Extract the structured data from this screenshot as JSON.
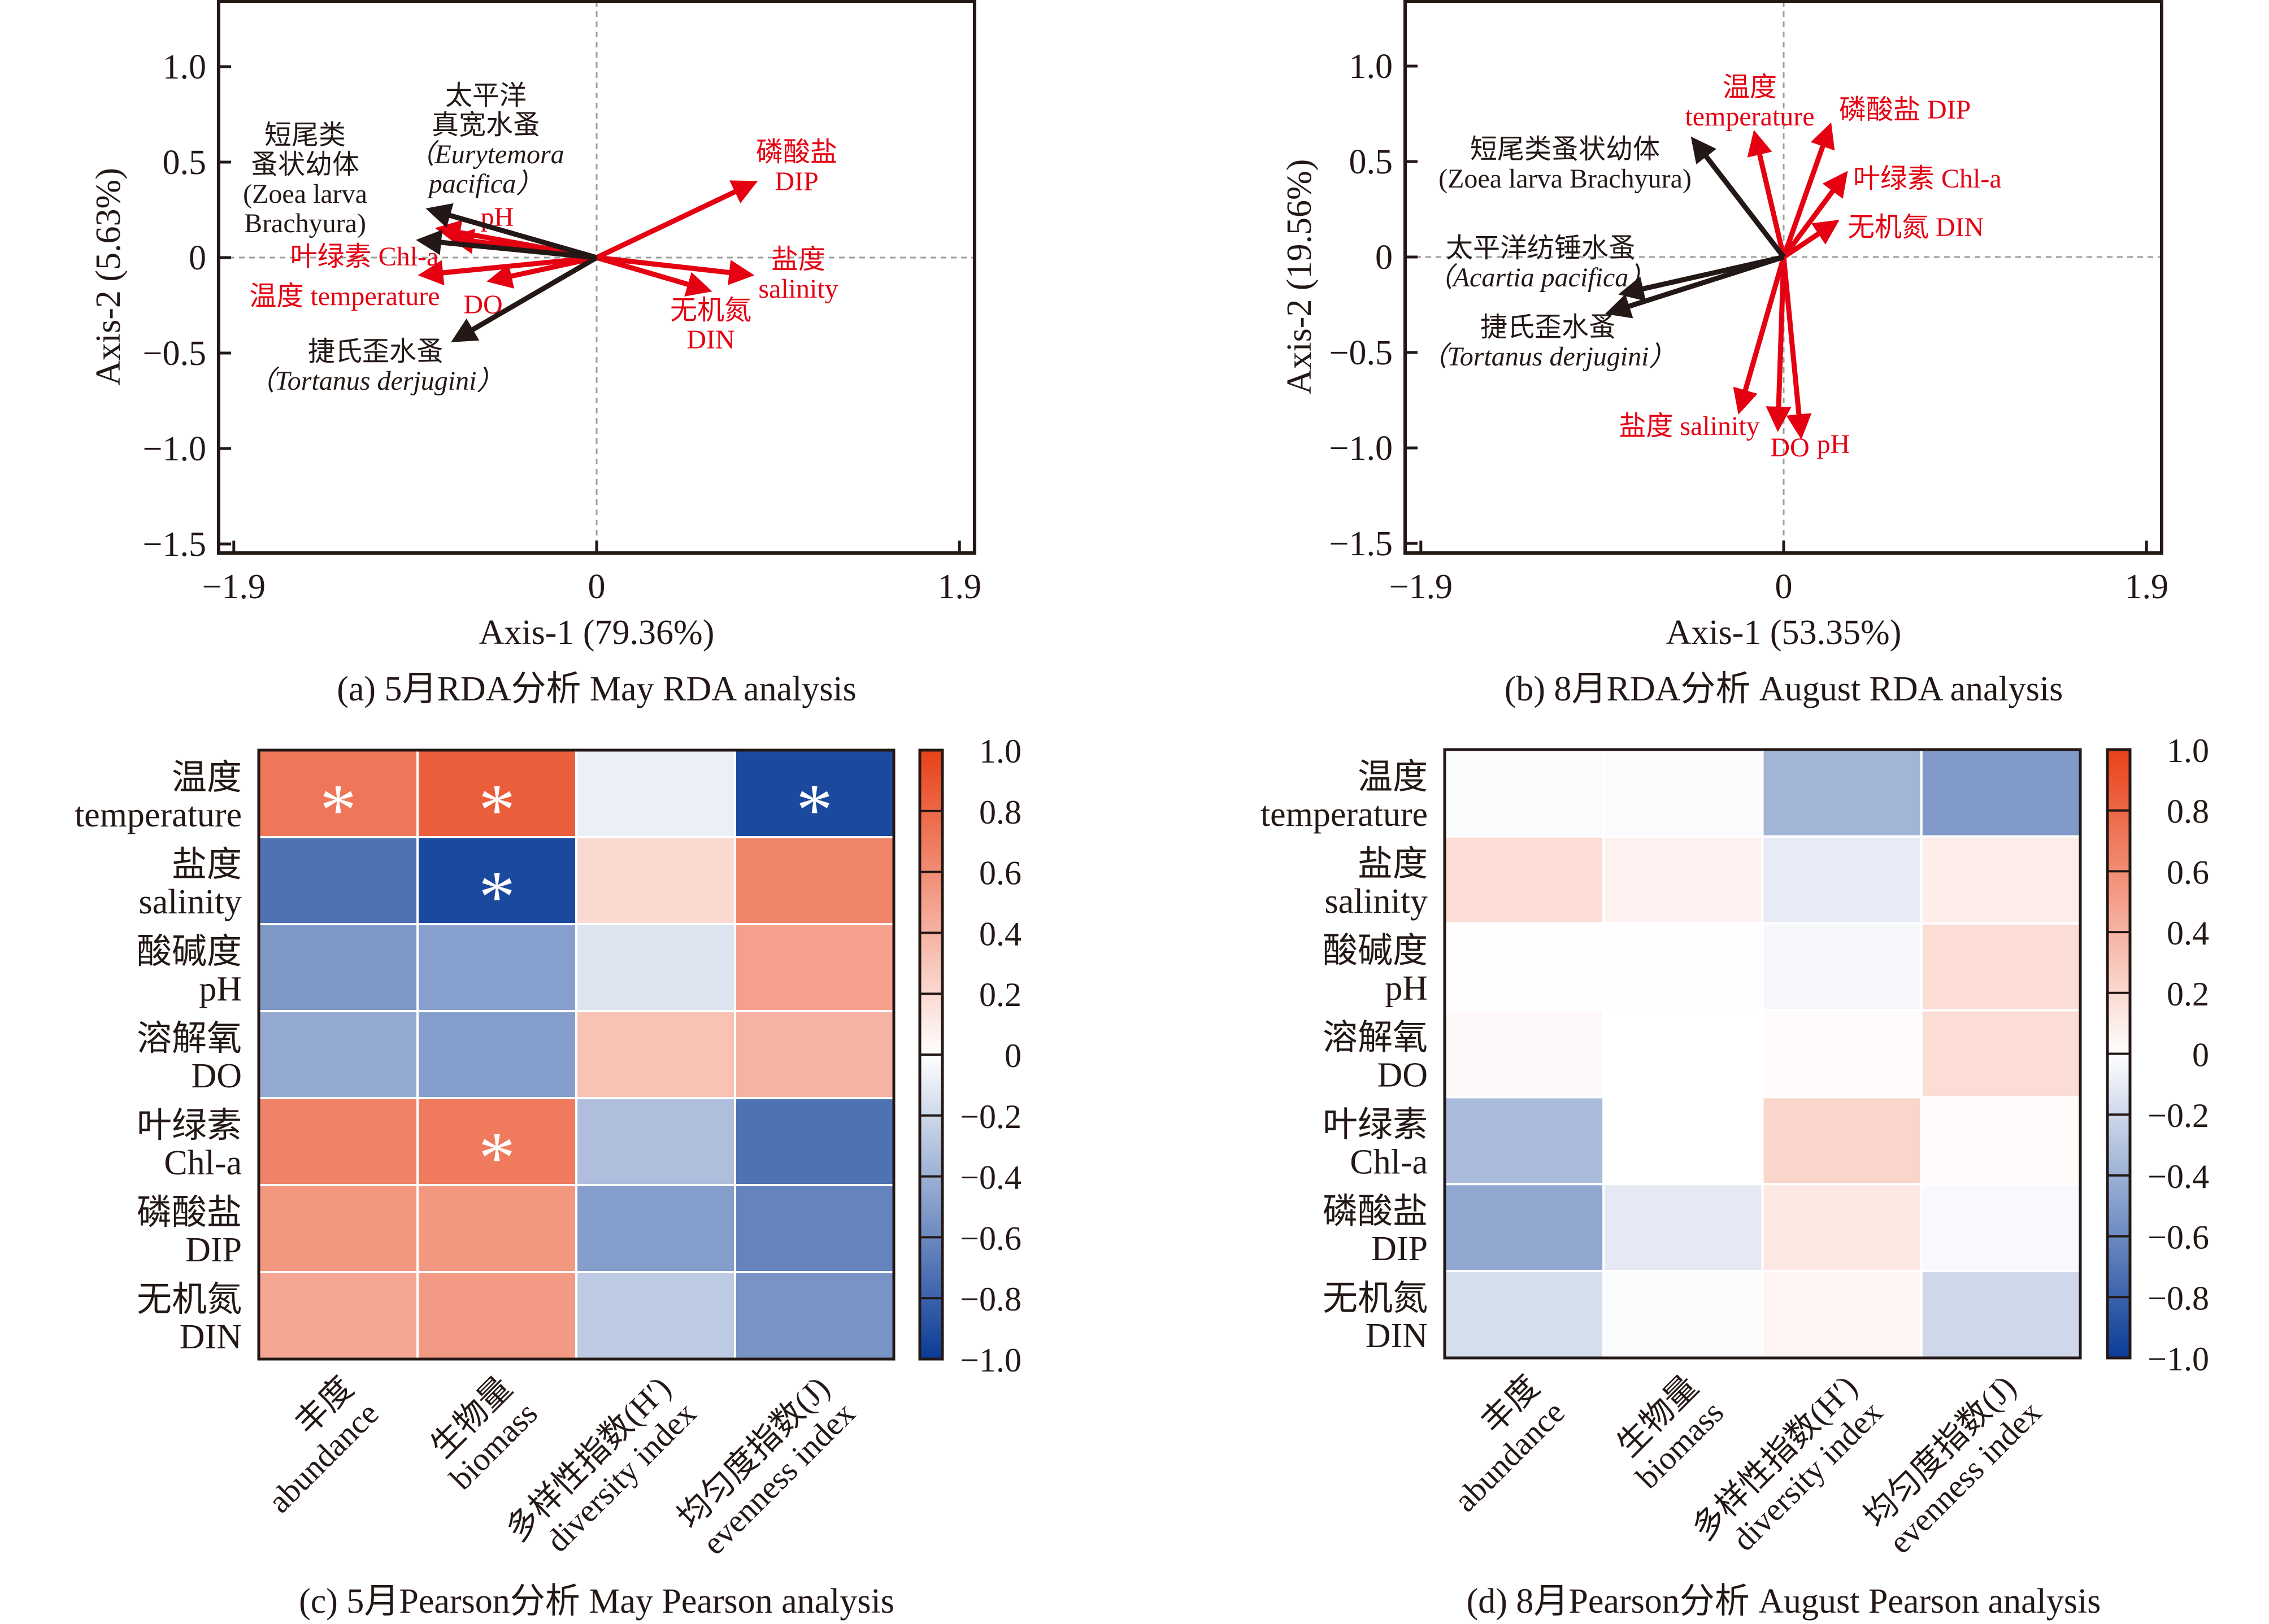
{
  "colors": {
    "env_arrow": "#e50012",
    "species_arrow": "#231815",
    "axis": "#231815",
    "zero_line": "#9e9e9e",
    "cmap_neg": "#0a3b96",
    "cmap_mid": "#ffffff",
    "cmap_pos": "#e84118"
  },
  "chart_data": [
    {
      "id": "a",
      "type": "scatter",
      "subtype": "rda-biplot",
      "title": "",
      "caption": "(a) 5月RDA分析 May RDA analysis",
      "xlabel": "Axis-1 (79.36%)",
      "ylabel": "Axis-2 (5.63%)",
      "xlim": [
        -1.96,
        1.96
      ],
      "ylim": [
        -1.55,
        1.35
      ],
      "xticks": [
        -1.9,
        0,
        1.9
      ],
      "xtick_labels": [
        "−1.9",
        "0",
        "1.9"
      ],
      "yticks": [
        1.0,
        0.5,
        0,
        -0.5,
        -1.0,
        -1.5
      ],
      "ytick_labels": [
        "1.0",
        "0.5",
        "0",
        "−0.5",
        "−1.0",
        "−1.5"
      ],
      "grid": false,
      "zero_lines": true,
      "species": [
        {
          "name_cn": [
            "太平洋",
            "真宽水蚤"
          ],
          "name_lat": [
            "（Eurytemora",
            "pacifica）"
          ],
          "latin_italic": true,
          "x": -0.87,
          "y": 0.25
        },
        {
          "name_cn": [
            "短尾类",
            "蚤状幼体"
          ],
          "name_lat": [
            "(Zoea larva",
            "Brachyura)"
          ],
          "latin_italic": false,
          "x": -0.92,
          "y": 0.09
        },
        {
          "name_cn": [
            "捷氏歪水蚤"
          ],
          "name_lat": [
            "（Tortanus derjugini）"
          ],
          "latin_italic": true,
          "x": -0.74,
          "y": -0.43
        }
      ],
      "environment": [
        {
          "label": [
            "pH"
          ],
          "x": -0.82,
          "y": 0.15
        },
        {
          "label": [
            "叶绿素 Chl-a"
          ],
          "x": -0.75,
          "y": 0.1
        },
        {
          "label": [
            "温度 temperature"
          ],
          "x": -0.91,
          "y": -0.09
        },
        {
          "label": [
            "DO"
          ],
          "x": -0.55,
          "y": -0.12
        },
        {
          "label": [
            "磷酸盐",
            "DIP"
          ],
          "x": 0.82,
          "y": 0.39
        },
        {
          "label": [
            "盐度",
            "salinity"
          ],
          "x": 0.8,
          "y": -0.09
        },
        {
          "label": [
            "无机氮",
            "DIN"
          ],
          "x": 0.58,
          "y": -0.17
        }
      ]
    },
    {
      "id": "b",
      "type": "scatter",
      "subtype": "rda-biplot",
      "title": "",
      "caption": "(b) 8月RDA分析 August RDA analysis",
      "xlabel": "Axis-1 (53.35%)",
      "ylabel": "Axis-2 (19.56%)",
      "xlim": [
        -1.96,
        1.96
      ],
      "ylim": [
        -1.55,
        1.35
      ],
      "xticks": [
        -1.9,
        0,
        1.9
      ],
      "xtick_labels": [
        "−1.9",
        "0",
        "1.9"
      ],
      "yticks": [
        1.0,
        0.5,
        0,
        -0.5,
        -1.0,
        -1.5
      ],
      "ytick_labels": [
        "1.0",
        "0.5",
        "0",
        "−0.5",
        "−1.0",
        "−1.5"
      ],
      "grid": false,
      "zero_lines": true,
      "species": [
        {
          "name_cn": [
            "短尾类蚤状幼体"
          ],
          "name_lat": [
            "(Zoea larva Brachyura)"
          ],
          "latin_italic": false,
          "x": -0.47,
          "y": 0.61
        },
        {
          "name_cn": [
            "太平洋纺锤水蚤"
          ],
          "name_lat": [
            "（Acartia pacifica）"
          ],
          "latin_italic": true,
          "x": -0.84,
          "y": -0.19
        },
        {
          "name_cn": [
            "捷氏歪水蚤"
          ],
          "name_lat": [
            "（Tortanus derjugini）"
          ],
          "latin_italic": true,
          "x": -0.91,
          "y": -0.29
        }
      ],
      "environment": [
        {
          "label": [
            "温度",
            "temperature"
          ],
          "x": -0.15,
          "y": 0.64
        },
        {
          "label": [
            "磷酸盐 DIP"
          ],
          "x": 0.24,
          "y": 0.68
        },
        {
          "label": [
            "叶绿素 Chl-a"
          ],
          "x": 0.32,
          "y": 0.43
        },
        {
          "label": [
            "无机氮 DIN"
          ],
          "x": 0.27,
          "y": 0.18
        },
        {
          "label": [
            "盐度 salinity"
          ],
          "x": -0.23,
          "y": -0.8
        },
        {
          "label": [
            "DO"
          ],
          "x": -0.03,
          "y": -0.89
        },
        {
          "label": [
            "pH"
          ],
          "x": 0.09,
          "y": -0.93
        }
      ]
    },
    {
      "id": "c",
      "type": "heatmap",
      "caption": "(c) 5月Pearson分析 May Pearson analysis",
      "rows": [
        {
          "cn": "温度",
          "en": "temperature"
        },
        {
          "cn": "盐度",
          "en": "salinity"
        },
        {
          "cn": "酸碱度",
          "en": "pH"
        },
        {
          "cn": "溶解氧",
          "en": "DO"
        },
        {
          "cn": "叶绿素",
          "en": "Chl-a"
        },
        {
          "cn": "磷酸盐",
          "en": "DIP"
        },
        {
          "cn": "无机氮",
          "en": "DIN"
        }
      ],
      "columns": [
        {
          "cn": "丰度",
          "en": "abundance"
        },
        {
          "cn": "生物量",
          "en": "biomass"
        },
        {
          "cn": "多样性指数(H′)",
          "en": "diversity index"
        },
        {
          "cn": "均匀度指数(J)",
          "en": "evenness index"
        }
      ],
      "values": [
        [
          0.72,
          0.85,
          -0.08,
          -0.93
        ],
        [
          -0.72,
          -0.93,
          0.2,
          0.64
        ],
        [
          -0.53,
          -0.49,
          -0.14,
          0.5
        ],
        [
          -0.44,
          -0.5,
          0.32,
          0.4
        ],
        [
          0.66,
          0.7,
          -0.33,
          -0.72
        ],
        [
          0.55,
          0.55,
          -0.5,
          -0.63
        ],
        [
          0.47,
          0.53,
          -0.27,
          -0.55
        ]
      ],
      "significant": [
        [
          true,
          true,
          false,
          true
        ],
        [
          false,
          true,
          false,
          false
        ],
        [
          false,
          false,
          false,
          false
        ],
        [
          false,
          false,
          false,
          false
        ],
        [
          false,
          true,
          false,
          false
        ],
        [
          false,
          false,
          false,
          false
        ],
        [
          false,
          false,
          false,
          false
        ]
      ],
      "significance_marker": "*",
      "colorbar": {
        "min": -1.0,
        "max": 1.0,
        "ticks": [
          "1.0",
          "0.8",
          "0.6",
          "0.4",
          "0.2",
          "0",
          "−0.2",
          "−0.4",
          "−0.6",
          "−0.8",
          "−1.0"
        ]
      }
    },
    {
      "id": "d",
      "type": "heatmap",
      "caption": "(d) 8月Pearson分析 August Pearson analysis",
      "rows": [
        {
          "cn": "温度",
          "en": "temperature"
        },
        {
          "cn": "盐度",
          "en": "salinity"
        },
        {
          "cn": "酸碱度",
          "en": "pH"
        },
        {
          "cn": "溶解氧",
          "en": "DO"
        },
        {
          "cn": "叶绿素",
          "en": "Chl-a"
        },
        {
          "cn": "磷酸盐",
          "en": "DIP"
        },
        {
          "cn": "无机氮",
          "en": "DIN"
        }
      ],
      "columns": [
        {
          "cn": "丰度",
          "en": "abundance"
        },
        {
          "cn": "生物量",
          "en": "biomass"
        },
        {
          "cn": "多样性指数(H′)",
          "en": "diversity index"
        },
        {
          "cn": "均匀度指数(J)",
          "en": "evenness index"
        }
      ],
      "values": [
        [
          -0.02,
          -0.02,
          -0.38,
          -0.52
        ],
        [
          0.18,
          0.07,
          -0.1,
          0.1
        ],
        [
          0.01,
          0.01,
          -0.04,
          0.18
        ],
        [
          0.03,
          0.0,
          0.02,
          0.18
        ],
        [
          -0.35,
          0.0,
          0.22,
          0.02
        ],
        [
          -0.45,
          -0.11,
          0.12,
          -0.03
        ],
        [
          -0.17,
          -0.02,
          0.06,
          -0.2
        ]
      ],
      "significant": [
        [
          false,
          false,
          false,
          false
        ],
        [
          false,
          false,
          false,
          false
        ],
        [
          false,
          false,
          false,
          false
        ],
        [
          false,
          false,
          false,
          false
        ],
        [
          false,
          false,
          false,
          false
        ],
        [
          false,
          false,
          false,
          false
        ],
        [
          false,
          false,
          false,
          false
        ]
      ],
      "significance_marker": "*",
      "colorbar": {
        "min": -1.0,
        "max": 1.0,
        "ticks": [
          "1.0",
          "0.8",
          "0.6",
          "0.4",
          "0.2",
          "0",
          "−0.2",
          "−0.4",
          "−0.6",
          "−0.8",
          "−1.0"
        ]
      }
    }
  ]
}
